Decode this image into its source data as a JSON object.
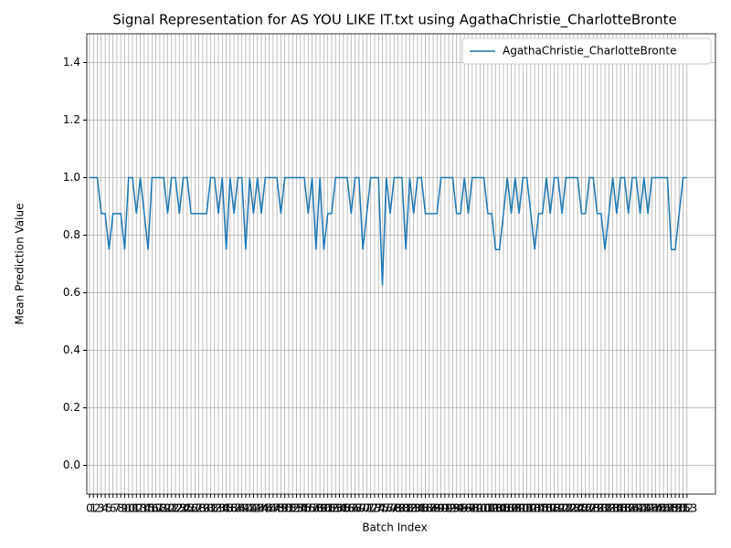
{
  "chart_data": {
    "type": "line",
    "title": "Signal Representation for AS YOU LIKE IT.txt using AgathaChristie_CharlotteBronte",
    "xlabel": "Batch Index",
    "ylabel": "Mean Prediction Value",
    "x": [
      0,
      1,
      2,
      3,
      4,
      5,
      6,
      7,
      8,
      9,
      10,
      11,
      12,
      13,
      14,
      15,
      16,
      17,
      18,
      19,
      20,
      21,
      22,
      23,
      24,
      25,
      26,
      27,
      28,
      29,
      30,
      31,
      32,
      33,
      34,
      35,
      36,
      37,
      38,
      39,
      40,
      41,
      42,
      43,
      44,
      45,
      46,
      47,
      48,
      49,
      50,
      51,
      52,
      53,
      54,
      55,
      56,
      57,
      58,
      59,
      60,
      61,
      62,
      63,
      64,
      65,
      66,
      67,
      68,
      69,
      70,
      71,
      72,
      73,
      74,
      75,
      76,
      77,
      78,
      79,
      80,
      81,
      82,
      83,
      84,
      85,
      86,
      87,
      88,
      89,
      90,
      91,
      92,
      93,
      94,
      95,
      96,
      97,
      98,
      99,
      100,
      101,
      102,
      103,
      104,
      105,
      106,
      107,
      108,
      109,
      110,
      111,
      112,
      113,
      114,
      115,
      116,
      117,
      118,
      119,
      120,
      121,
      122,
      123,
      124,
      125,
      126,
      127,
      128,
      129,
      130,
      131,
      132,
      133,
      134,
      135,
      136,
      137,
      138,
      139,
      140,
      141,
      142,
      143,
      144,
      145,
      146,
      147,
      148,
      149,
      150,
      151,
      152,
      153
    ],
    "series": [
      {
        "name": "AgathaChristie_CharlotteBronte",
        "color": "#1f77b4",
        "values": [
          1,
          1,
          1,
          0.875,
          0.875,
          0.75,
          0.875,
          0.875,
          0.875,
          0.75,
          1,
          1,
          0.875,
          1,
          0.875,
          0.75,
          1,
          1,
          1,
          1,
          0.875,
          1,
          1,
          0.875,
          1,
          1,
          0.875,
          0.875,
          0.875,
          0.875,
          0.875,
          1,
          1,
          0.875,
          1,
          0.75,
          1,
          0.875,
          1,
          1,
          0.75,
          1,
          0.875,
          1,
          0.875,
          1,
          1,
          1,
          1,
          0.875,
          1,
          1,
          1,
          1,
          1,
          1,
          0.875,
          1,
          0.75,
          1,
          0.75,
          0.875,
          0.875,
          1,
          1,
          1,
          1,
          0.875,
          1,
          1,
          0.75,
          0.875,
          1,
          1,
          1,
          0.625,
          1,
          0.875,
          1,
          1,
          1,
          0.75,
          1,
          0.875,
          1,
          1,
          0.875,
          0.875,
          0.875,
          0.875,
          1,
          1,
          1,
          1,
          0.875,
          0.875,
          1,
          0.875,
          1,
          1,
          1,
          1,
          0.875,
          0.875,
          0.75,
          0.75,
          0.875,
          1,
          0.875,
          1,
          0.875,
          1,
          1,
          0.875,
          0.75,
          0.875,
          0.875,
          1,
          0.875,
          1,
          1,
          0.875,
          1,
          1,
          1,
          1,
          0.875,
          0.875,
          1,
          1,
          0.875,
          0.875,
          0.75,
          0.875,
          1,
          0.875,
          1,
          1,
          0.875,
          1,
          1,
          0.875,
          1,
          0.875,
          1,
          1,
          1,
          1,
          1,
          0.75,
          0.75,
          0.875,
          1,
          1
        ]
      }
    ],
    "xlim": [
      -0.7,
      160.3
    ],
    "xticks": [
      0,
      1,
      2,
      3,
      4,
      5,
      6,
      7,
      8,
      9,
      10,
      11,
      12,
      13,
      14,
      15,
      16,
      17,
      18,
      19,
      20,
      21,
      22,
      23,
      24,
      25,
      26,
      27,
      28,
      29,
      30,
      31,
      32,
      33,
      34,
      35,
      36,
      37,
      38,
      39,
      40,
      41,
      42,
      43,
      44,
      45,
      46,
      47,
      48,
      49,
      50,
      51,
      52,
      53,
      54,
      55,
      56,
      57,
      58,
      59,
      60,
      61,
      62,
      63,
      64,
      65,
      66,
      67,
      68,
      69,
      70,
      71,
      72,
      73,
      74,
      75,
      76,
      77,
      78,
      79,
      80,
      81,
      82,
      83,
      84,
      85,
      86,
      87,
      88,
      89,
      90,
      91,
      92,
      93,
      94,
      95,
      96,
      97,
      98,
      99,
      100,
      101,
      102,
      103,
      104,
      105,
      106,
      107,
      108,
      109,
      110,
      111,
      112,
      113,
      114,
      115,
      116,
      117,
      118,
      119,
      120,
      121,
      122,
      123,
      124,
      125,
      126,
      127,
      128,
      129,
      130,
      131,
      132,
      133,
      134,
      135,
      136,
      137,
      138,
      139,
      140,
      141,
      142,
      143,
      144,
      145,
      146,
      147,
      148,
      149,
      150,
      151,
      152,
      153
    ],
    "ylim": [
      -0.1,
      1.5
    ],
    "yticks": [
      {
        "value": 0,
        "label": "0.0"
      },
      0.2,
      0.4,
      0.6,
      0.8,
      {
        "value": 1,
        "label": "1.0"
      },
      1.2,
      1.4
    ],
    "grid": true,
    "legend": "upper right"
  }
}
